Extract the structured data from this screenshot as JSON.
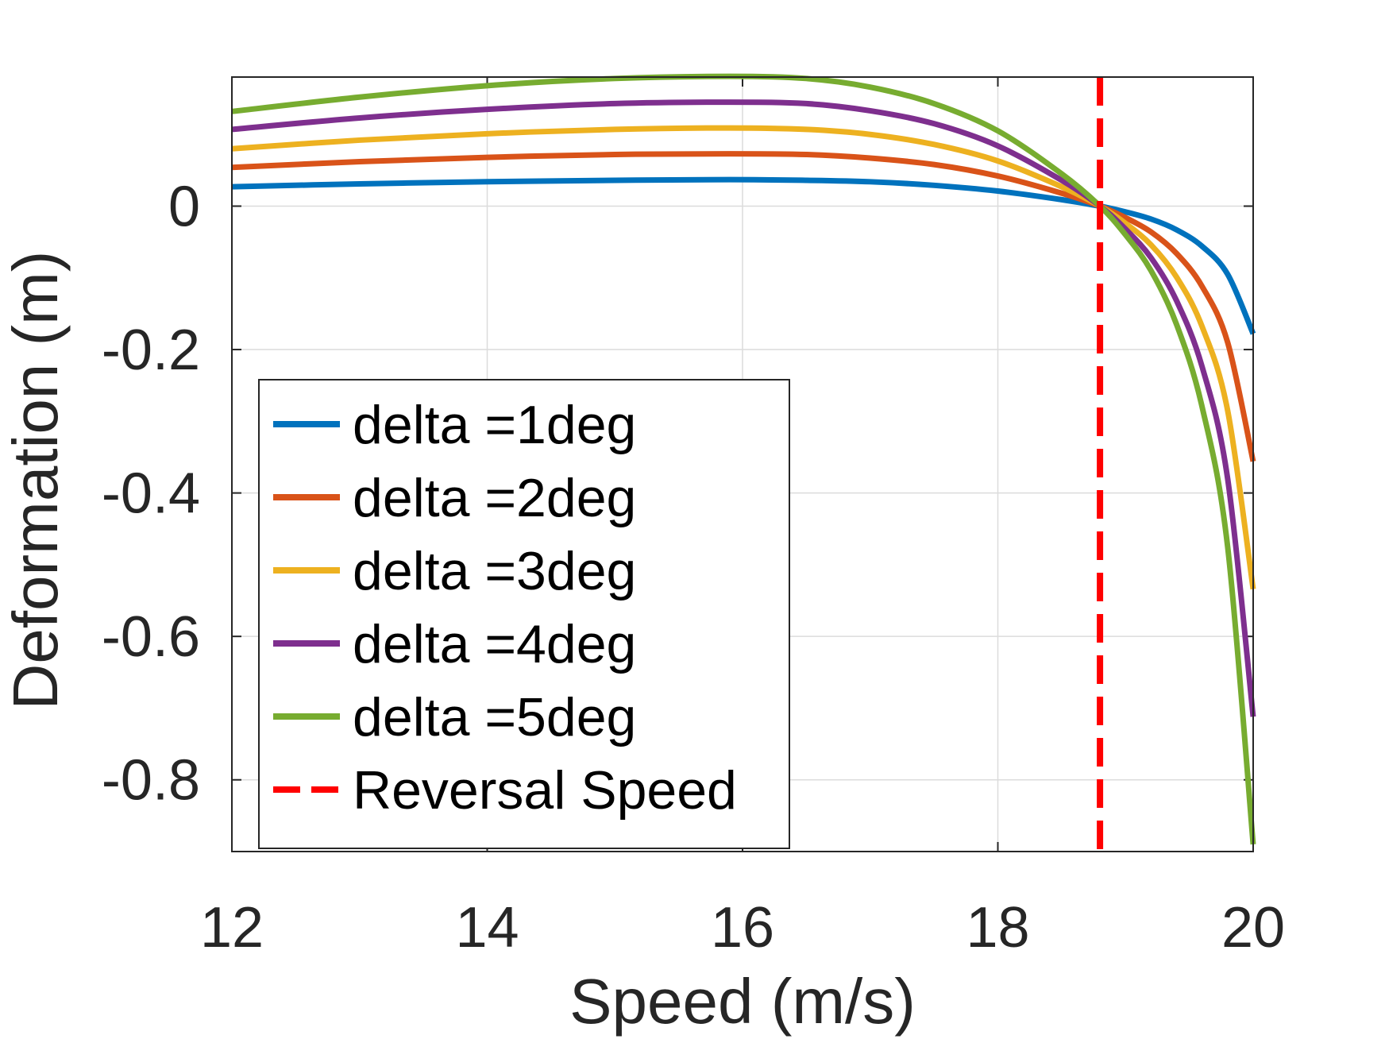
{
  "chart_data": {
    "type": "line",
    "title": "",
    "xlabel": "Speed (m/s)",
    "ylabel": "Deformation (m)",
    "xlim": [
      12,
      20
    ],
    "ylim": [
      -0.9,
      0.18
    ],
    "xticks": [
      12,
      14,
      16,
      18,
      20
    ],
    "xtick_labels": [
      "12",
      "14",
      "16",
      "18",
      "20"
    ],
    "yticks": [
      -0.8,
      -0.6,
      -0.4,
      -0.2,
      0
    ],
    "ytick_labels": [
      "-0.8",
      "-0.6",
      "-0.4",
      "-0.2",
      "0"
    ],
    "grid": true,
    "legend_position": "bottom-left",
    "x": [
      12,
      13,
      14,
      15,
      15.9,
      16.5,
      17,
      17.5,
      18,
      18.5,
      18.8,
      19.0,
      19.2,
      19.4,
      19.6,
      19.8,
      20
    ],
    "series": [
      {
        "name": "delta =1deg",
        "color": "#0072BD",
        "values": [
          0.027,
          0.031,
          0.034,
          0.036,
          0.037,
          0.036,
          0.034,
          0.029,
          0.021,
          0.009,
          0.0,
          -0.008,
          -0.018,
          -0.033,
          -0.056,
          -0.095,
          -0.178
        ]
      },
      {
        "name": "delta =2deg",
        "color": "#D95319",
        "values": [
          0.054,
          0.062,
          0.068,
          0.072,
          0.073,
          0.072,
          0.067,
          0.058,
          0.042,
          0.018,
          0.0,
          -0.016,
          -0.036,
          -0.066,
          -0.112,
          -0.19,
          -0.356
        ]
      },
      {
        "name": "delta =3deg",
        "color": "#EDB120",
        "values": [
          0.08,
          0.092,
          0.101,
          0.107,
          0.109,
          0.107,
          0.1,
          0.086,
          0.063,
          0.027,
          0.0,
          -0.024,
          -0.054,
          -0.099,
          -0.168,
          -0.285,
          -0.534
        ]
      },
      {
        "name": "delta =4deg",
        "color": "#7E2F8E",
        "values": [
          0.107,
          0.123,
          0.135,
          0.143,
          0.145,
          0.143,
          0.133,
          0.115,
          0.084,
          0.036,
          0.0,
          -0.032,
          -0.072,
          -0.132,
          -0.224,
          -0.38,
          -0.712
        ]
      },
      {
        "name": "delta =5deg",
        "color": "#77AC30",
        "values": [
          0.132,
          0.152,
          0.168,
          0.178,
          0.181,
          0.178,
          0.166,
          0.143,
          0.105,
          0.045,
          0.0,
          -0.04,
          -0.09,
          -0.165,
          -0.28,
          -0.475,
          -0.89
        ]
      }
    ],
    "vertical_line": {
      "name": "Reversal Speed",
      "x": 18.8,
      "color": "#FF0000",
      "style": "dashed"
    }
  }
}
